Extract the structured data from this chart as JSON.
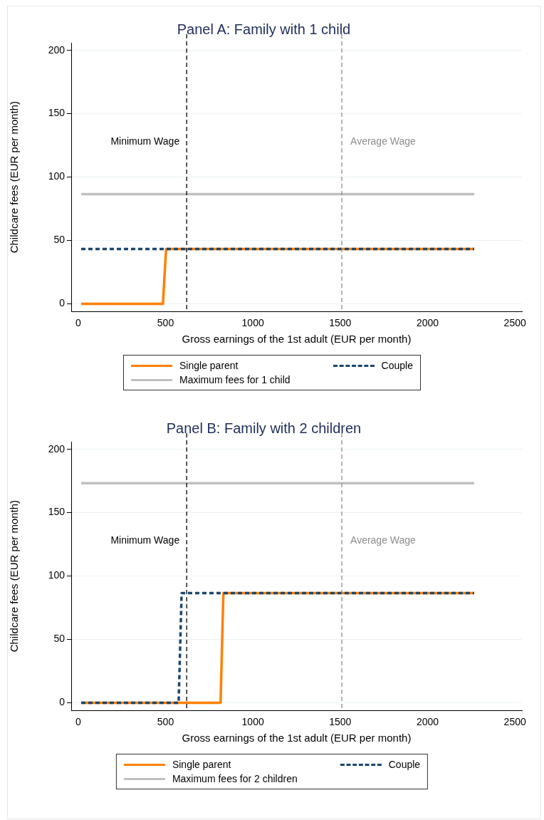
{
  "chart_data": [
    {
      "type": "line",
      "title": "Panel A: Family with 1 child",
      "xlabel": "Gross earnings of the 1st adult (EUR per month)",
      "ylabel": "Childcare fees (EUR per month)",
      "xlim": [
        -40,
        2540
      ],
      "xticks": [
        0,
        500,
        1000,
        1500,
        2000,
        2500
      ],
      "ylim": [
        -6,
        206
      ],
      "yticks": [
        0,
        50,
        100,
        150,
        200
      ],
      "grid": "y",
      "legend": "bottom",
      "marker": "none",
      "series": [
        {
          "name": "Single parent",
          "color": "#ff8000",
          "line_style": "solid",
          "x": [
            17,
            485,
            503,
            2267
          ],
          "values": [
            0,
            0,
            43.3,
            43.3
          ]
        },
        {
          "name": "Couple",
          "color": "#1a476f",
          "line_style": "dashed",
          "x": [
            17,
            2267
          ],
          "values": [
            43.3,
            43.3
          ]
        },
        {
          "name": "Maximum fees for 1 child",
          "color": "#c0c0c0",
          "line_style": "solid",
          "x": [
            17,
            2267
          ],
          "values": [
            86.6,
            86.6
          ]
        }
      ],
      "ref_lines": [
        {
          "axis": "x",
          "value": 621,
          "label": "Minimum Wage",
          "color": "#000000",
          "line_style": "dashed"
        },
        {
          "axis": "x",
          "value": 1509,
          "label": "Average Wage",
          "color": "#8c8c8c",
          "line_style": "dashed"
        }
      ]
    },
    {
      "type": "line",
      "title": "Panel B: Family with 2 children",
      "xlabel": "Gross earnings of the 1st adult (EUR per month)",
      "ylabel": "Childcare fees (EUR per month)",
      "xlim": [
        -40,
        2540
      ],
      "xticks": [
        0,
        500,
        1000,
        1500,
        2000,
        2500
      ],
      "ylim": [
        -6,
        206
      ],
      "yticks": [
        0,
        50,
        100,
        150,
        200
      ],
      "grid": "y",
      "legend": "bottom",
      "marker": "none",
      "series": [
        {
          "name": "Single parent",
          "color": "#ff8000",
          "line_style": "solid",
          "x": [
            17,
            815,
            831,
            2267
          ],
          "values": [
            0,
            0,
            86.6,
            86.6
          ]
        },
        {
          "name": "Couple",
          "color": "#1a476f",
          "line_style": "dashed",
          "x": [
            17,
            575,
            592,
            2267
          ],
          "values": [
            0,
            0,
            86.6,
            86.6
          ]
        },
        {
          "name": "Maximum fees for 2 children",
          "color": "#c0c0c0",
          "line_style": "solid",
          "x": [
            17,
            2267
          ],
          "values": [
            173.2,
            173.2
          ]
        }
      ],
      "ref_lines": [
        {
          "axis": "x",
          "value": 621,
          "label": "Minimum Wage",
          "color": "#000000",
          "line_style": "dashed"
        },
        {
          "axis": "x",
          "value": 1509,
          "label": "Average Wage",
          "color": "#8c8c8c",
          "line_style": "dashed"
        }
      ]
    }
  ]
}
